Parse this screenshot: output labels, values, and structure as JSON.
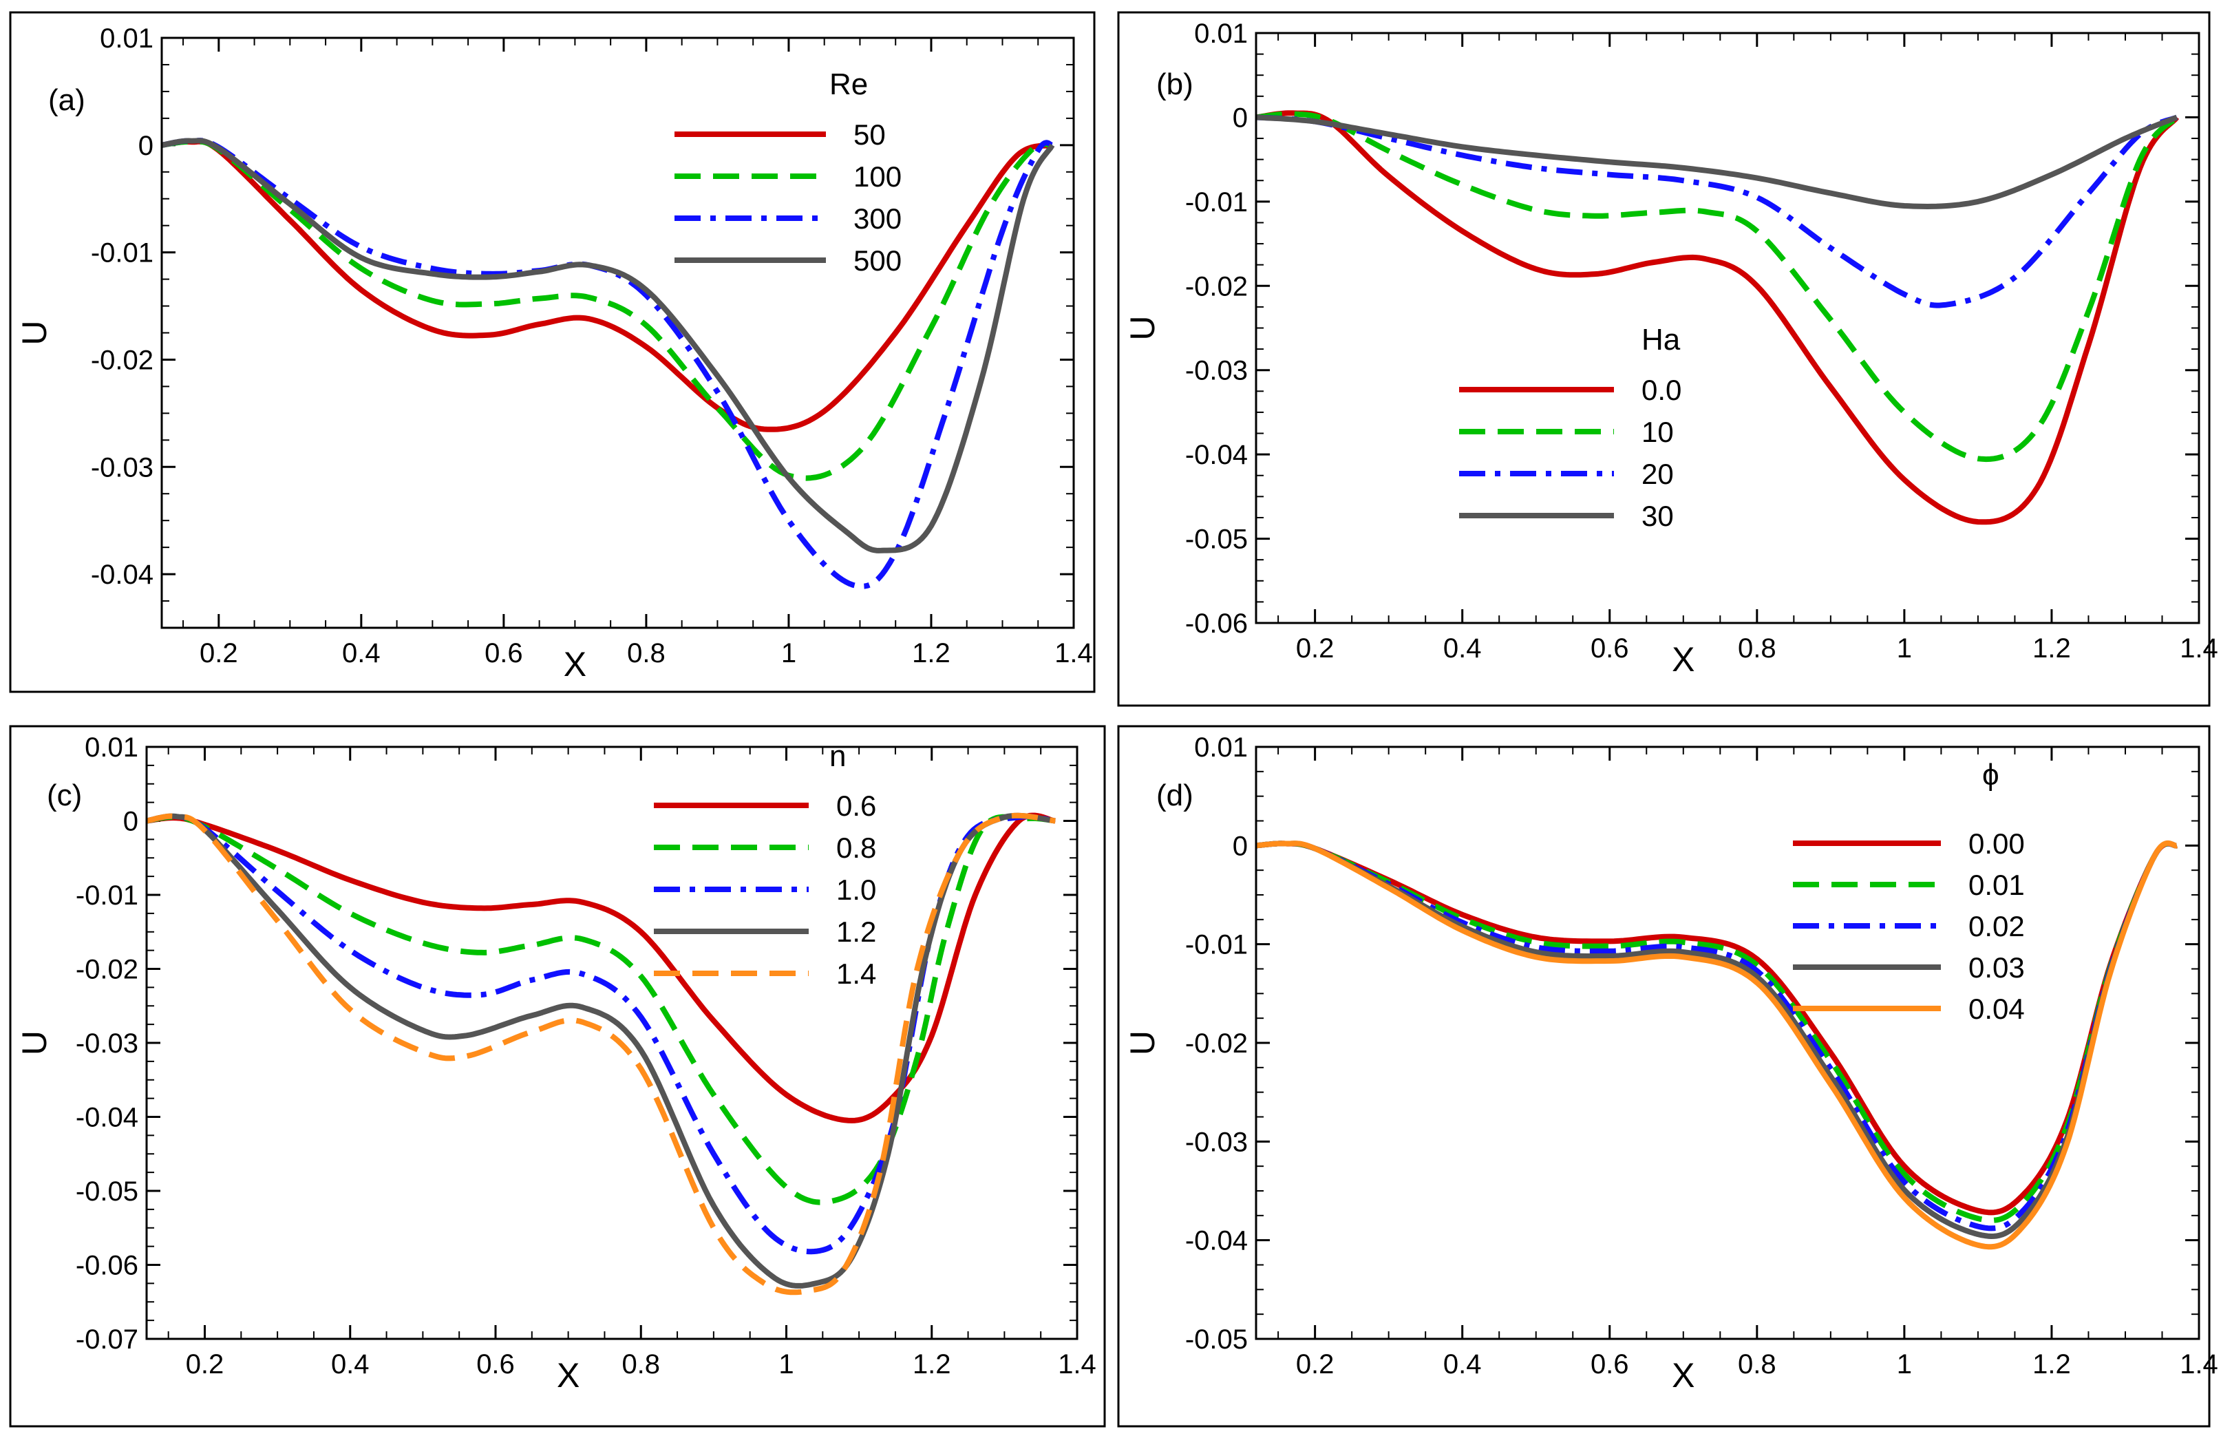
{
  "chart_data": [
    {
      "type": "line",
      "panel_label": "(a)",
      "xlabel": "X",
      "ylabel": "U",
      "xlim": [
        0.12,
        1.4
      ],
      "ylim": [
        -0.045,
        0.01
      ],
      "xticks": [
        0.2,
        0.4,
        0.6,
        0.8,
        1,
        1.2,
        1.4
      ],
      "xtick_labels": [
        "0.2",
        "0.4",
        "0.6",
        "0.8",
        "1",
        "1.2",
        "1.4"
      ],
      "yticks": [
        0.01,
        0,
        -0.01,
        -0.02,
        -0.03,
        -0.04
      ],
      "ytick_labels": [
        "0.01",
        "0",
        "-0.01",
        "-0.02",
        "-0.03",
        "-0.04"
      ],
      "legend_title": "Re",
      "legend_placement": "top-right",
      "series": [
        {
          "name": "50",
          "color": "#d00000",
          "dash": "solid",
          "x": [
            0.12,
            0.16,
            0.2,
            0.3,
            0.4,
            0.5,
            0.58,
            0.65,
            0.72,
            0.8,
            0.9,
            0.97,
            1.05,
            1.15,
            1.25,
            1.32,
            1.37
          ],
          "y": [
            0.0,
            0.0003,
            -0.0005,
            -0.007,
            -0.0135,
            -0.0172,
            -0.0177,
            -0.0167,
            -0.0162,
            -0.0188,
            -0.0245,
            -0.0265,
            -0.0248,
            -0.0175,
            -0.0075,
            -0.001,
            0.0
          ]
        },
        {
          "name": "100",
          "color": "#00c000",
          "dash": "dash",
          "x": [
            0.12,
            0.16,
            0.2,
            0.3,
            0.4,
            0.5,
            0.58,
            0.65,
            0.72,
            0.8,
            0.9,
            1.0,
            1.1,
            1.2,
            1.28,
            1.34,
            1.37
          ],
          "y": [
            0.0,
            0.0003,
            -0.0004,
            -0.006,
            -0.0115,
            -0.0145,
            -0.0148,
            -0.0143,
            -0.0142,
            -0.0168,
            -0.0245,
            -0.0308,
            -0.0285,
            -0.017,
            -0.006,
            -0.0005,
            0.0
          ]
        },
        {
          "name": "300",
          "color": "#1010ff",
          "dash": "dashdot",
          "x": [
            0.12,
            0.16,
            0.2,
            0.3,
            0.4,
            0.5,
            0.58,
            0.65,
            0.72,
            0.8,
            0.9,
            1.0,
            1.09,
            1.15,
            1.22,
            1.3,
            1.35,
            1.37
          ],
          "y": [
            0.0,
            0.0004,
            -0.0002,
            -0.005,
            -0.0095,
            -0.0115,
            -0.012,
            -0.0117,
            -0.0112,
            -0.014,
            -0.023,
            -0.035,
            -0.041,
            -0.038,
            -0.025,
            -0.008,
            -0.0005,
            0.0
          ]
        },
        {
          "name": "500",
          "color": "#555555",
          "dash": "solid",
          "x": [
            0.12,
            0.16,
            0.2,
            0.3,
            0.4,
            0.5,
            0.58,
            0.65,
            0.72,
            0.8,
            0.9,
            1.0,
            1.08,
            1.13,
            1.2,
            1.27,
            1.33,
            1.37
          ],
          "y": [
            0.0,
            0.0004,
            -0.0003,
            -0.0055,
            -0.0105,
            -0.012,
            -0.0123,
            -0.0118,
            -0.0112,
            -0.0135,
            -0.0215,
            -0.031,
            -0.036,
            -0.0378,
            -0.0355,
            -0.022,
            -0.005,
            0.0
          ]
        }
      ]
    },
    {
      "type": "line",
      "panel_label": "(b)",
      "xlabel": "X",
      "ylabel": "U",
      "xlim": [
        0.12,
        1.4
      ],
      "ylim": [
        -0.06,
        0.01
      ],
      "xticks": [
        0.2,
        0.4,
        0.6,
        0.8,
        1,
        1.2,
        1.4
      ],
      "xtick_labels": [
        "0.2",
        "0.4",
        "0.6",
        "0.8",
        "1",
        "1.2",
        "1.4"
      ],
      "yticks": [
        0.01,
        0,
        -0.01,
        -0.02,
        -0.03,
        -0.04,
        -0.05,
        -0.06
      ],
      "ytick_labels": [
        "0.01",
        "0",
        "-0.01",
        "-0.02",
        "-0.03",
        "-0.04",
        "-0.05",
        "-0.06"
      ],
      "legend_title": "Ha",
      "legend_placement": "center-left",
      "series": [
        {
          "name": "0.0",
          "color": "#d00000",
          "dash": "solid",
          "x": [
            0.12,
            0.17,
            0.22,
            0.3,
            0.4,
            0.5,
            0.58,
            0.66,
            0.73,
            0.8,
            0.9,
            1.0,
            1.1,
            1.18,
            1.25,
            1.32,
            1.37
          ],
          "y": [
            0.0,
            0.0005,
            -0.0005,
            -0.007,
            -0.0135,
            -0.018,
            -0.0186,
            -0.0172,
            -0.0168,
            -0.02,
            -0.032,
            -0.043,
            -0.048,
            -0.044,
            -0.027,
            -0.006,
            0.0
          ]
        },
        {
          "name": "10",
          "color": "#00c000",
          "dash": "dash",
          "x": [
            0.12,
            0.17,
            0.22,
            0.3,
            0.4,
            0.5,
            0.58,
            0.66,
            0.73,
            0.8,
            0.9,
            1.0,
            1.1,
            1.18,
            1.25,
            1.32,
            1.37
          ],
          "y": [
            0.0,
            0.0004,
            -0.0004,
            -0.004,
            -0.008,
            -0.011,
            -0.0117,
            -0.0113,
            -0.0112,
            -0.0135,
            -0.024,
            -0.035,
            -0.0405,
            -0.037,
            -0.023,
            -0.005,
            0.0
          ]
        },
        {
          "name": "20",
          "color": "#1010ff",
          "dash": "dashdot",
          "x": [
            0.12,
            0.2,
            0.3,
            0.4,
            0.5,
            0.6,
            0.7,
            0.8,
            0.9,
            1.0,
            1.06,
            1.15,
            1.25,
            1.32,
            1.37
          ],
          "y": [
            0.0,
            -0.0005,
            -0.0025,
            -0.0045,
            -0.006,
            -0.0068,
            -0.0075,
            -0.0095,
            -0.0155,
            -0.021,
            -0.0222,
            -0.019,
            -0.009,
            -0.002,
            0.0
          ]
        },
        {
          "name": "30",
          "color": "#555555",
          "dash": "solid",
          "x": [
            0.12,
            0.2,
            0.3,
            0.4,
            0.5,
            0.6,
            0.7,
            0.8,
            0.9,
            1.0,
            1.1,
            1.2,
            1.3,
            1.37
          ],
          "y": [
            0.0,
            -0.0005,
            -0.002,
            -0.0035,
            -0.0045,
            -0.0053,
            -0.006,
            -0.0072,
            -0.009,
            -0.0105,
            -0.01,
            -0.0068,
            -0.0025,
            0.0
          ]
        }
      ]
    },
    {
      "type": "line",
      "panel_label": "(c)",
      "xlabel": "X",
      "ylabel": "U",
      "xlim": [
        0.12,
        1.4
      ],
      "ylim": [
        -0.07,
        0.01
      ],
      "xticks": [
        0.2,
        0.4,
        0.6,
        0.8,
        1,
        1.2,
        1.4
      ],
      "xtick_labels": [
        "0.2",
        "0.4",
        "0.6",
        "0.8",
        "1",
        "1.2",
        "1.4"
      ],
      "yticks": [
        0.01,
        0,
        -0.01,
        -0.02,
        -0.03,
        -0.04,
        -0.05,
        -0.06,
        -0.07
      ],
      "ytick_labels": [
        "0.01",
        "0",
        "-0.01",
        "-0.02",
        "-0.03",
        "-0.04",
        "-0.05",
        "-0.06",
        "-0.07"
      ],
      "legend_title": "n",
      "legend_placement": "top-right",
      "series": [
        {
          "name": "0.6",
          "color": "#d00000",
          "dash": "solid",
          "x": [
            0.12,
            0.16,
            0.2,
            0.3,
            0.4,
            0.5,
            0.58,
            0.65,
            0.72,
            0.8,
            0.9,
            1.0,
            1.09,
            1.15,
            1.2,
            1.26,
            1.32,
            1.37
          ],
          "y": [
            0.0,
            0.0004,
            -0.0005,
            -0.004,
            -0.008,
            -0.011,
            -0.0118,
            -0.0113,
            -0.011,
            -0.015,
            -0.027,
            -0.037,
            -0.0405,
            -0.037,
            -0.029,
            -0.01,
            0.0,
            0.0
          ]
        },
        {
          "name": "0.8",
          "color": "#00c000",
          "dash": "dash",
          "x": [
            0.12,
            0.16,
            0.2,
            0.3,
            0.4,
            0.5,
            0.58,
            0.65,
            0.72,
            0.8,
            0.9,
            1.0,
            1.07,
            1.13,
            1.18,
            1.22,
            1.27,
            1.33,
            1.37
          ],
          "y": [
            0.0,
            0.0005,
            -0.0008,
            -0.0065,
            -0.0125,
            -0.0165,
            -0.0178,
            -0.0168,
            -0.016,
            -0.021,
            -0.037,
            -0.0495,
            -0.0512,
            -0.046,
            -0.032,
            -0.015,
            -0.001,
            0.0003,
            0.0
          ]
        },
        {
          "name": "1.0",
          "color": "#1010ff",
          "dash": "dashdot",
          "x": [
            0.12,
            0.16,
            0.2,
            0.3,
            0.4,
            0.5,
            0.58,
            0.65,
            0.72,
            0.8,
            0.9,
            0.98,
            1.05,
            1.1,
            1.15,
            1.2,
            1.25,
            1.32,
            1.37
          ],
          "y": [
            0.0,
            0.0006,
            -0.001,
            -0.0095,
            -0.0175,
            -0.0225,
            -0.0235,
            -0.0215,
            -0.0207,
            -0.0265,
            -0.045,
            -0.056,
            -0.058,
            -0.053,
            -0.04,
            -0.015,
            -0.002,
            0.0005,
            0.0
          ]
        },
        {
          "name": "1.2",
          "color": "#555555",
          "dash": "solid",
          "x": [
            0.12,
            0.16,
            0.2,
            0.3,
            0.4,
            0.5,
            0.56,
            0.65,
            0.72,
            0.8,
            0.9,
            0.98,
            1.04,
            1.09,
            1.14,
            1.19,
            1.24,
            1.3,
            1.37
          ],
          "y": [
            0.0,
            0.0006,
            -0.0012,
            -0.012,
            -0.0225,
            -0.0283,
            -0.029,
            -0.0263,
            -0.0252,
            -0.031,
            -0.052,
            -0.0615,
            -0.0625,
            -0.059,
            -0.045,
            -0.019,
            -0.004,
            0.0005,
            0.0
          ]
        },
        {
          "name": "1.4",
          "color": "#ff8c1a",
          "dash": "dash",
          "x": [
            0.12,
            0.16,
            0.2,
            0.3,
            0.4,
            0.5,
            0.56,
            0.65,
            0.72,
            0.8,
            0.9,
            0.97,
            1.03,
            1.08,
            1.13,
            1.18,
            1.24,
            1.3,
            1.37
          ],
          "y": [
            0.0,
            0.0006,
            -0.0013,
            -0.0135,
            -0.0255,
            -0.0312,
            -0.0318,
            -0.0285,
            -0.0272,
            -0.0335,
            -0.055,
            -0.0625,
            -0.0635,
            -0.0605,
            -0.047,
            -0.02,
            -0.004,
            0.0005,
            0.0
          ]
        }
      ]
    },
    {
      "type": "line",
      "panel_label": "(d)",
      "xlabel": "X",
      "ylabel": "U",
      "xlim": [
        0.12,
        1.4
      ],
      "ylim": [
        -0.05,
        0.01
      ],
      "xticks": [
        0.2,
        0.4,
        0.6,
        0.8,
        1,
        1.2,
        1.4
      ],
      "xtick_labels": [
        "0.2",
        "0.4",
        "0.6",
        "0.8",
        "1",
        "1.2",
        "1.4"
      ],
      "yticks": [
        0.01,
        0,
        -0.01,
        -0.02,
        -0.03,
        -0.04,
        -0.05
      ],
      "ytick_labels": [
        "0.01",
        "0",
        "-0.01",
        "-0.02",
        "-0.03",
        "-0.04",
        "-0.05"
      ],
      "legend_title": "ϕ",
      "legend_placement": "top-right",
      "series": [
        {
          "name": "0.00",
          "color": "#d00000",
          "dash": "solid",
          "x": [
            0.12,
            0.16,
            0.2,
            0.3,
            0.4,
            0.5,
            0.6,
            0.7,
            0.8,
            0.9,
            1.0,
            1.1,
            1.16,
            1.22,
            1.28,
            1.34,
            1.37
          ],
          "y": [
            0.0,
            0.0002,
            -0.0003,
            -0.0035,
            -0.007,
            -0.0093,
            -0.0097,
            -0.0093,
            -0.0115,
            -0.021,
            -0.0325,
            -0.037,
            -0.0355,
            -0.028,
            -0.012,
            -0.001,
            0.0
          ]
        },
        {
          "name": "0.01",
          "color": "#00c000",
          "dash": "dash",
          "x": [
            0.12,
            0.16,
            0.2,
            0.3,
            0.4,
            0.5,
            0.6,
            0.7,
            0.8,
            0.9,
            1.0,
            1.1,
            1.16,
            1.22,
            1.28,
            1.34,
            1.37
          ],
          "y": [
            0.0,
            0.0002,
            -0.0003,
            -0.0037,
            -0.0074,
            -0.0098,
            -0.0102,
            -0.0098,
            -0.0121,
            -0.0218,
            -0.0333,
            -0.0378,
            -0.0363,
            -0.0286,
            -0.0122,
            -0.001,
            0.0
          ]
        },
        {
          "name": "0.02",
          "color": "#1010ff",
          "dash": "dashdot",
          "x": [
            0.12,
            0.16,
            0.2,
            0.3,
            0.4,
            0.5,
            0.6,
            0.7,
            0.8,
            0.9,
            1.0,
            1.1,
            1.16,
            1.22,
            1.28,
            1.34,
            1.37
          ],
          "y": [
            0.0,
            0.0002,
            -0.0003,
            -0.0039,
            -0.0078,
            -0.0103,
            -0.0107,
            -0.0103,
            -0.0127,
            -0.0226,
            -0.0341,
            -0.0386,
            -0.0371,
            -0.0292,
            -0.0124,
            -0.001,
            0.0
          ]
        },
        {
          "name": "0.03",
          "color": "#555555",
          "dash": "solid",
          "x": [
            0.12,
            0.16,
            0.2,
            0.3,
            0.4,
            0.5,
            0.6,
            0.7,
            0.8,
            0.9,
            1.0,
            1.1,
            1.16,
            1.22,
            1.28,
            1.34,
            1.37
          ],
          "y": [
            0.0,
            0.0002,
            -0.0003,
            -0.0041,
            -0.0082,
            -0.0108,
            -0.0112,
            -0.0108,
            -0.0133,
            -0.0234,
            -0.0349,
            -0.0394,
            -0.0379,
            -0.0298,
            -0.0126,
            -0.001,
            0.0
          ]
        },
        {
          "name": "0.04",
          "color": "#ff8c1a",
          "dash": "solid",
          "x": [
            0.12,
            0.16,
            0.2,
            0.3,
            0.4,
            0.5,
            0.6,
            0.7,
            0.8,
            0.9,
            1.0,
            1.1,
            1.16,
            1.22,
            1.28,
            1.34,
            1.37
          ],
          "y": [
            0.0,
            0.0002,
            -0.0003,
            -0.0043,
            -0.0086,
            -0.0113,
            -0.0117,
            -0.0113,
            -0.0139,
            -0.0242,
            -0.0357,
            -0.0405,
            -0.0387,
            -0.0304,
            -0.0128,
            -0.001,
            0.0
          ]
        }
      ]
    }
  ]
}
